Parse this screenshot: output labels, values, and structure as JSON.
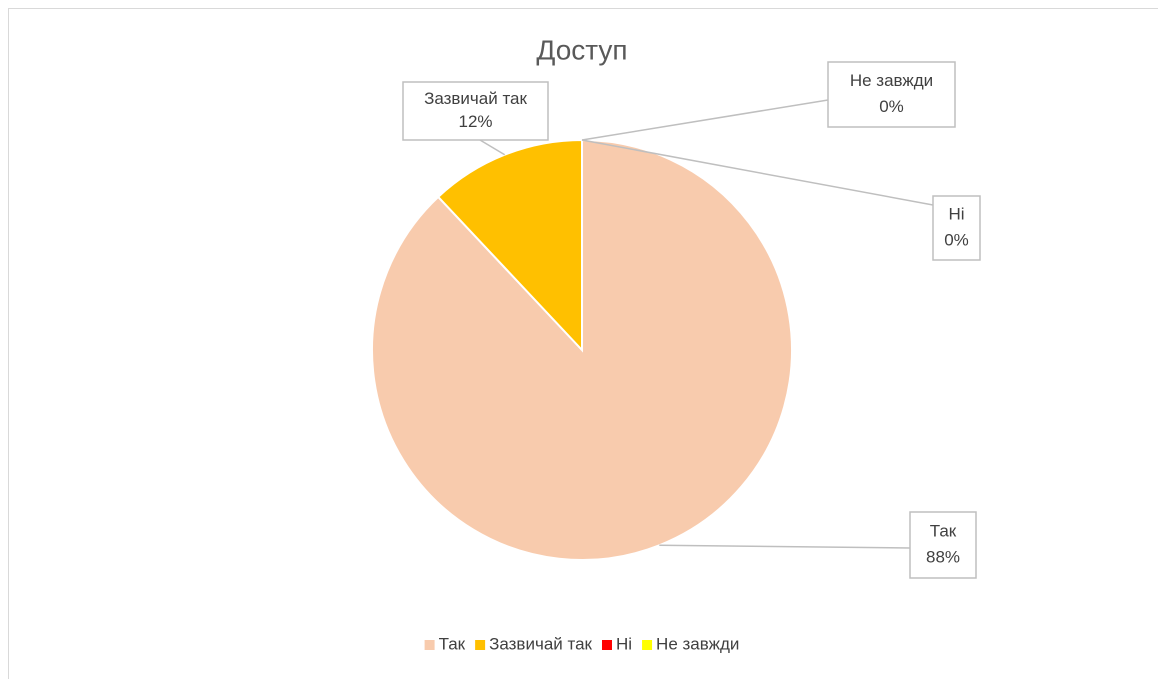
{
  "chart_data": {
    "type": "pie",
    "title": "Доступ",
    "categories": [
      "Так",
      "Зазвичай так",
      "Ні",
      "Не завжди"
    ],
    "values": [
      88,
      12,
      0,
      0
    ],
    "value_labels": [
      "88%",
      "12%",
      "0%",
      "0%"
    ],
    "colors": [
      "#f8cbad",
      "#ffc000",
      "#ff0000",
      "#ffff00"
    ],
    "legend": "bottom"
  }
}
